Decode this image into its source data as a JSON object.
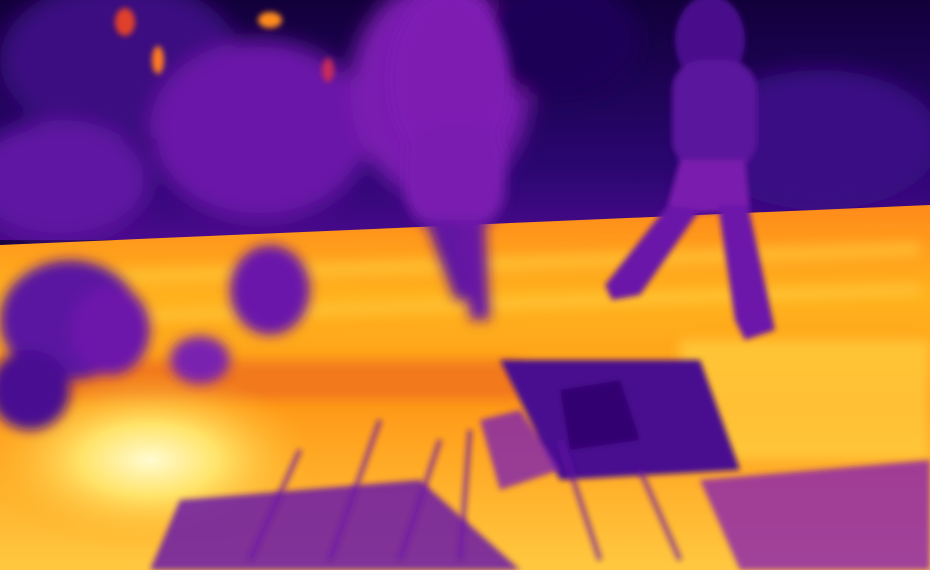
{
  "image": {
    "kind": "thermal-camera-photo",
    "palette": "inferno",
    "colors": {
      "cold": "#14003a",
      "cool": "#4a0a8c",
      "mid": "#8a1fb3",
      "warm": "#e0402a",
      "hot": "#ffa11a",
      "hottest": "#fff27a"
    },
    "subjects": [
      "walking-person",
      "walking-person",
      "roadside-grass",
      "trees"
    ]
  }
}
